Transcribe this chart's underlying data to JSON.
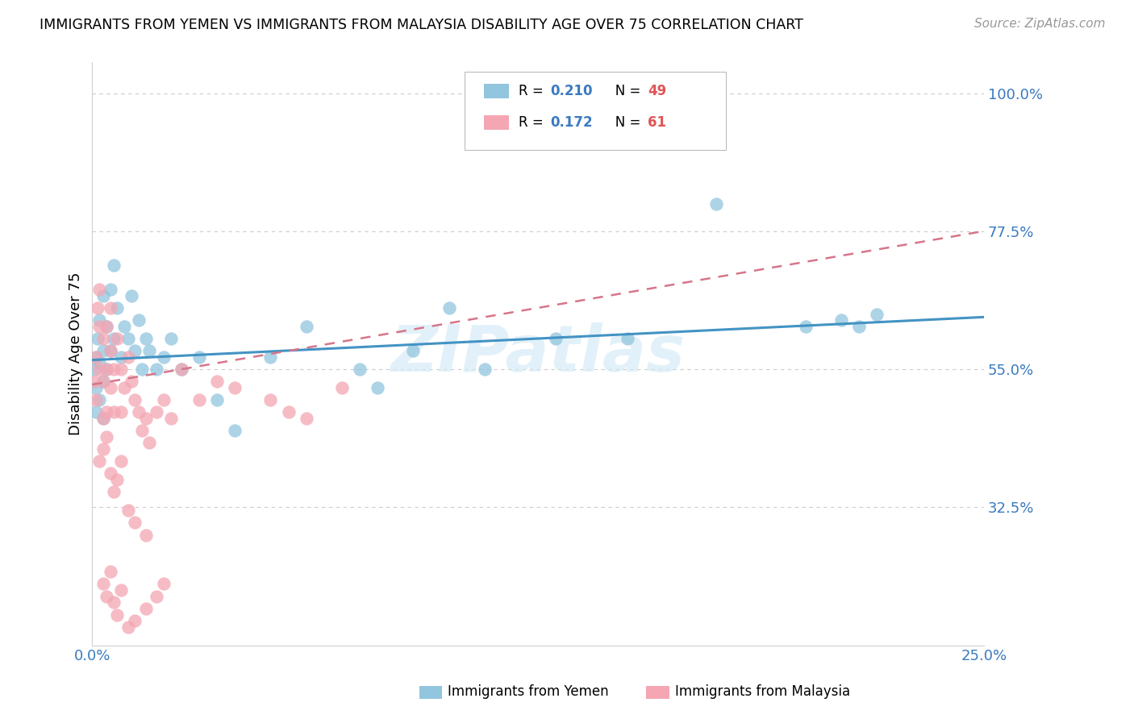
{
  "title": "IMMIGRANTS FROM YEMEN VS IMMIGRANTS FROM MALAYSIA DISABILITY AGE OVER 75 CORRELATION CHART",
  "source": "Source: ZipAtlas.com",
  "ylabel": "Disability Age Over 75",
  "xlim": [
    0.0,
    0.25
  ],
  "ylim": [
    0.1,
    1.05
  ],
  "xtick_positions": [
    0.0,
    0.05,
    0.1,
    0.15,
    0.2,
    0.25
  ],
  "xticklabels": [
    "0.0%",
    "",
    "",
    "",
    "",
    "25.0%"
  ],
  "ytick_positions": [
    0.325,
    0.55,
    0.775,
    1.0
  ],
  "ytick_labels": [
    "32.5%",
    "55.0%",
    "77.5%",
    "100.0%"
  ],
  "color_yemen": "#92c5de",
  "color_malaysia": "#f4a6b2",
  "color_line_yemen": "#4393c3",
  "color_line_malaysia": "#d6758a",
  "watermark": "ZIPatlas",
  "yemen_x": [
    0.0005,
    0.001,
    0.001,
    0.0015,
    0.001,
    0.002,
    0.002,
    0.002,
    0.003,
    0.003,
    0.003,
    0.003,
    0.004,
    0.004,
    0.005,
    0.005,
    0.006,
    0.006,
    0.007,
    0.008,
    0.009,
    0.01,
    0.011,
    0.012,
    0.013,
    0.014,
    0.015,
    0.016,
    0.018,
    0.02,
    0.022,
    0.025,
    0.03,
    0.035,
    0.04,
    0.05,
    0.06,
    0.075,
    0.08,
    0.09,
    0.1,
    0.11,
    0.13,
    0.15,
    0.175,
    0.2,
    0.21,
    0.215,
    0.22
  ],
  "yemen_y": [
    0.55,
    0.57,
    0.52,
    0.6,
    0.48,
    0.63,
    0.56,
    0.5,
    0.67,
    0.58,
    0.53,
    0.47,
    0.62,
    0.55,
    0.68,
    0.58,
    0.72,
    0.6,
    0.65,
    0.57,
    0.62,
    0.6,
    0.67,
    0.58,
    0.63,
    0.55,
    0.6,
    0.58,
    0.55,
    0.57,
    0.6,
    0.55,
    0.57,
    0.5,
    0.45,
    0.57,
    0.62,
    0.55,
    0.52,
    0.58,
    0.65,
    0.55,
    0.6,
    0.6,
    0.82,
    0.62,
    0.63,
    0.62,
    0.64
  ],
  "malaysia_x": [
    0.0005,
    0.001,
    0.001,
    0.0015,
    0.002,
    0.002,
    0.002,
    0.003,
    0.003,
    0.003,
    0.004,
    0.004,
    0.004,
    0.005,
    0.005,
    0.005,
    0.006,
    0.006,
    0.007,
    0.008,
    0.008,
    0.009,
    0.01,
    0.011,
    0.012,
    0.013,
    0.014,
    0.015,
    0.016,
    0.018,
    0.02,
    0.022,
    0.025,
    0.03,
    0.035,
    0.04,
    0.05,
    0.055,
    0.06,
    0.07,
    0.002,
    0.003,
    0.004,
    0.005,
    0.006,
    0.007,
    0.008,
    0.01,
    0.012,
    0.015,
    0.003,
    0.004,
    0.005,
    0.006,
    0.007,
    0.008,
    0.01,
    0.012,
    0.015,
    0.018,
    0.02
  ],
  "malaysia_y": [
    0.53,
    0.57,
    0.5,
    0.65,
    0.68,
    0.62,
    0.55,
    0.6,
    0.53,
    0.47,
    0.62,
    0.55,
    0.48,
    0.65,
    0.58,
    0.52,
    0.55,
    0.48,
    0.6,
    0.55,
    0.48,
    0.52,
    0.57,
    0.53,
    0.5,
    0.48,
    0.45,
    0.47,
    0.43,
    0.48,
    0.5,
    0.47,
    0.55,
    0.5,
    0.53,
    0.52,
    0.5,
    0.48,
    0.47,
    0.52,
    0.4,
    0.42,
    0.44,
    0.38,
    0.35,
    0.37,
    0.4,
    0.32,
    0.3,
    0.28,
    0.2,
    0.18,
    0.22,
    0.17,
    0.15,
    0.19,
    0.13,
    0.14,
    0.16,
    0.18,
    0.2
  ],
  "yemen_line_x0": 0.0,
  "yemen_line_x1": 0.25,
  "yemen_line_y0": 0.565,
  "yemen_line_y1": 0.635,
  "malaysia_line_x0": 0.0,
  "malaysia_line_x1": 0.25,
  "malaysia_line_y0": 0.525,
  "malaysia_line_y1": 0.775
}
